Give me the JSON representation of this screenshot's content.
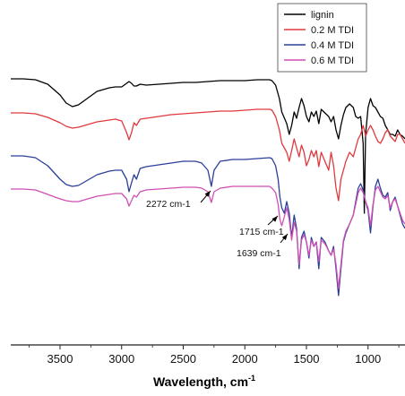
{
  "chart_data": {
    "type": "line",
    "title": "",
    "xlabel": "Wavelength, cm",
    "xlabel_superscript": "-1",
    "ylabel": "",
    "xlim": [
      3900,
      700
    ],
    "x_ticks": [
      3500,
      3000,
      2500,
      2000,
      1500,
      1000
    ],
    "y_axis_visible": false,
    "grid": false,
    "legend_placement": "top-right",
    "colors": {
      "lignin": "#000000",
      "tdi02": "#e0393e",
      "tdi04": "#2b3f9a",
      "tdi06": "#d04fb3"
    },
    "series": [
      {
        "name": "lignin",
        "color": "#000000",
        "x": [
          3900,
          3800,
          3700,
          3600,
          3500,
          3450,
          3400,
          3350,
          3300,
          3200,
          3100,
          3050,
          3000,
          2960,
          2940,
          2920,
          2900,
          2880,
          2850,
          2800,
          2600,
          2500,
          2400,
          2300,
          2200,
          2100,
          2000,
          1900,
          1800,
          1780,
          1750,
          1720,
          1700,
          1660,
          1640,
          1620,
          1600,
          1580,
          1560,
          1540,
          1520,
          1500,
          1480,
          1460,
          1440,
          1420,
          1400,
          1380,
          1350,
          1320,
          1300,
          1280,
          1260,
          1240,
          1220,
          1200,
          1180,
          1150,
          1120,
          1100,
          1080,
          1060,
          1040,
          1030,
          1020,
          1000,
          980,
          960,
          940,
          920,
          900,
          880,
          860,
          840,
          820,
          800,
          780,
          760,
          740,
          720,
          700
        ],
        "y": [
          88,
          88,
          89,
          94,
          106,
          115,
          119,
          117,
          112,
          102,
          98,
          97,
          97,
          93,
          91,
          93,
          96,
          96,
          94,
          95,
          93,
          92,
          92,
          91,
          90,
          90,
          90,
          89,
          89,
          90,
          95,
          110,
          125,
          138,
          150,
          140,
          125,
          132,
          120,
          110,
          118,
          130,
          136,
          125,
          130,
          124,
          138,
          122,
          126,
          130,
          136,
          130,
          145,
          155,
          140,
          128,
          120,
          116,
          120,
          130,
          132,
          130,
          160,
          238,
          150,
          120,
          110,
          118,
          120,
          125,
          130,
          132,
          140,
          145,
          150,
          150,
          152,
          145,
          150,
          152,
          155
        ]
      },
      {
        "name": "0.2 M TDI",
        "color": "#e0393e",
        "x": [
          3900,
          3800,
          3700,
          3600,
          3500,
          3450,
          3400,
          3350,
          3300,
          3200,
          3100,
          3050,
          3000,
          2960,
          2940,
          2920,
          2900,
          2880,
          2850,
          2800,
          2600,
          2500,
          2400,
          2300,
          2200,
          2100,
          2000,
          1900,
          1800,
          1780,
          1750,
          1720,
          1700,
          1660,
          1640,
          1620,
          1600,
          1580,
          1560,
          1540,
          1520,
          1500,
          1480,
          1460,
          1440,
          1420,
          1400,
          1380,
          1350,
          1320,
          1300,
          1280,
          1260,
          1240,
          1220,
          1200,
          1180,
          1150,
          1120,
          1100,
          1080,
          1060,
          1040,
          1030,
          1020,
          1000,
          980,
          960,
          940,
          920,
          900,
          880,
          860,
          840,
          820,
          800,
          780,
          760,
          740,
          720,
          700
        ],
        "y": [
          126,
          126,
          127,
          131,
          137,
          141,
          143,
          142,
          140,
          136,
          134,
          133,
          135,
          148,
          156,
          148,
          137,
          140,
          133,
          132,
          128,
          127,
          126,
          125,
          124,
          124,
          123,
          122,
          122,
          123,
          130,
          145,
          160,
          170,
          180,
          168,
          155,
          165,
          175,
          162,
          170,
          185,
          178,
          168,
          175,
          168,
          186,
          170,
          180,
          190,
          170,
          185,
          210,
          224,
          200,
          190,
          180,
          170,
          175,
          165,
          155,
          150,
          140,
          145,
          152,
          145,
          140,
          145,
          152,
          158,
          160,
          155,
          148,
          145,
          152,
          155,
          158,
          150,
          150,
          155,
          160
        ]
      },
      {
        "name": "0.4 M TDI",
        "color": "#2b3f9a",
        "x": [
          3900,
          3800,
          3700,
          3600,
          3500,
          3450,
          3400,
          3350,
          3300,
          3200,
          3100,
          3050,
          3000,
          2960,
          2940,
          2920,
          2900,
          2880,
          2850,
          2800,
          2600,
          2500,
          2400,
          2350,
          2300,
          2272,
          2250,
          2200,
          2100,
          2000,
          1900,
          1800,
          1780,
          1750,
          1730,
          1715,
          1700,
          1680,
          1660,
          1640,
          1620,
          1600,
          1580,
          1560,
          1540,
          1520,
          1500,
          1480,
          1460,
          1440,
          1420,
          1400,
          1380,
          1350,
          1320,
          1300,
          1280,
          1260,
          1240,
          1220,
          1200,
          1180,
          1150,
          1120,
          1100,
          1080,
          1060,
          1040,
          1020,
          1000,
          980,
          960,
          940,
          920,
          900,
          880,
          860,
          840,
          820,
          800,
          780,
          760,
          740,
          720,
          700
        ],
        "y": [
          174,
          174,
          176,
          185,
          200,
          206,
          208,
          207,
          203,
          195,
          191,
          190,
          190,
          200,
          214,
          204,
          195,
          200,
          188,
          186,
          182,
          180,
          180,
          182,
          190,
          208,
          190,
          180,
          178,
          178,
          177,
          176,
          177,
          185,
          200,
          220,
          232,
          238,
          225,
          238,
          265,
          240,
          255,
          300,
          265,
          258,
          270,
          288,
          265,
          275,
          270,
          300,
          265,
          270,
          280,
          285,
          275,
          300,
          330,
          300,
          270,
          260,
          250,
          240,
          225,
          210,
          205,
          212,
          225,
          235,
          260,
          230,
          208,
          200,
          210,
          218,
          220,
          215,
          235,
          225,
          220,
          230,
          240,
          250,
          255
        ]
      },
      {
        "name": "0.6 M TDI",
        "color": "#d04fb3",
        "x": [
          3900,
          3800,
          3700,
          3600,
          3500,
          3450,
          3400,
          3350,
          3300,
          3200,
          3100,
          3050,
          3000,
          2960,
          2940,
          2920,
          2900,
          2880,
          2850,
          2800,
          2600,
          2500,
          2400,
          2350,
          2300,
          2272,
          2250,
          2200,
          2100,
          2000,
          1900,
          1800,
          1780,
          1750,
          1730,
          1715,
          1700,
          1680,
          1660,
          1640,
          1620,
          1600,
          1580,
          1560,
          1540,
          1520,
          1500,
          1480,
          1460,
          1440,
          1420,
          1400,
          1380,
          1350,
          1320,
          1300,
          1280,
          1260,
          1240,
          1220,
          1200,
          1180,
          1150,
          1120,
          1100,
          1080,
          1060,
          1040,
          1020,
          1000,
          980,
          960,
          940,
          920,
          900,
          880,
          860,
          840,
          820,
          800,
          780,
          760,
          740,
          720,
          700
        ],
        "y": [
          211,
          211,
          212,
          217,
          222,
          224,
          225,
          225,
          223,
          219,
          217,
          216,
          216,
          222,
          230,
          224,
          218,
          220,
          214,
          212,
          210,
          209,
          209,
          210,
          214,
          226,
          214,
          210,
          208,
          208,
          208,
          208,
          210,
          215,
          228,
          245,
          252,
          242,
          232,
          245,
          268,
          248,
          258,
          295,
          268,
          262,
          270,
          285,
          268,
          275,
          270,
          292,
          268,
          272,
          280,
          285,
          278,
          295,
          322,
          295,
          268,
          258,
          250,
          240,
          228,
          215,
          210,
          215,
          225,
          232,
          252,
          228,
          212,
          208,
          214,
          220,
          222,
          218,
          232,
          225,
          222,
          230,
          238,
          246,
          250
        ]
      }
    ],
    "annotations": [
      {
        "text": "2272 cm-1",
        "target_x": 2272,
        "target_series": "0.4 M TDI"
      },
      {
        "text": "1715 cm-1",
        "target_x": 1715,
        "target_series": "0.4 M TDI"
      },
      {
        "text": "1639 cm-1",
        "target_x": 1639,
        "target_series": "0.6 M TDI"
      }
    ]
  }
}
